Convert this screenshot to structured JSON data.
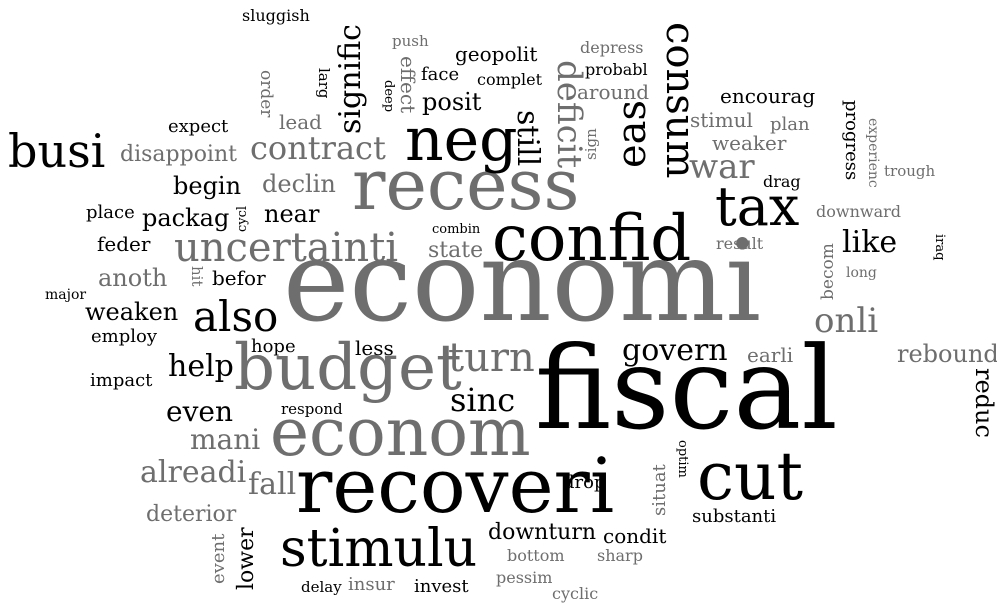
{
  "colors": {
    "primary": "#000000",
    "secondary": "#6e6e6e",
    "background": "#ffffff"
  },
  "words": [
    {
      "text": "economi",
      "tone": "secondary"
    },
    {
      "text": "fiscal",
      "tone": "primary"
    },
    {
      "text": "recoveri",
      "tone": "primary"
    },
    {
      "text": "recess",
      "tone": "secondary"
    },
    {
      "text": "confid",
      "tone": "primary"
    },
    {
      "text": "econom",
      "tone": "secondary"
    },
    {
      "text": "budget",
      "tone": "secondary"
    },
    {
      "text": "stimulu",
      "tone": "primary"
    },
    {
      "text": "cut",
      "tone": "primary"
    },
    {
      "text": "tax",
      "tone": "primary"
    },
    {
      "text": "neg",
      "tone": "primary"
    },
    {
      "text": "busi",
      "tone": "primary"
    },
    {
      "text": "consum",
      "tone": "primary"
    },
    {
      "text": "uncertainti",
      "tone": "secondary"
    },
    {
      "text": "also",
      "tone": "primary"
    },
    {
      "text": "eas",
      "tone": "primary"
    },
    {
      "text": "deficit",
      "tone": "secondary"
    },
    {
      "text": "turn",
      "tone": "secondary"
    },
    {
      "text": "signific",
      "tone": "primary"
    },
    {
      "text": "contract",
      "tone": "secondary"
    },
    {
      "text": "war",
      "tone": "secondary"
    },
    {
      "text": "onli",
      "tone": "secondary"
    },
    {
      "text": "like",
      "tone": "primary"
    },
    {
      "text": "sinc",
      "tone": "primary"
    },
    {
      "text": "govern",
      "tone": "primary"
    },
    {
      "text": "help",
      "tone": "primary"
    },
    {
      "text": "mani",
      "tone": "secondary"
    },
    {
      "text": "alreadi",
      "tone": "secondary"
    },
    {
      "text": "fall",
      "tone": "secondary"
    },
    {
      "text": "still",
      "tone": "primary"
    },
    {
      "text": "even",
      "tone": "primary"
    },
    {
      "text": "reduc",
      "tone": "primary"
    },
    {
      "text": "rebound",
      "tone": "secondary"
    },
    {
      "text": "weaken",
      "tone": "primary"
    },
    {
      "text": "posit",
      "tone": "primary"
    },
    {
      "text": "packag",
      "tone": "primary"
    },
    {
      "text": "declin",
      "tone": "secondary"
    },
    {
      "text": "begin",
      "tone": "primary"
    },
    {
      "text": "near",
      "tone": "primary"
    },
    {
      "text": "anoth",
      "tone": "secondary"
    },
    {
      "text": "downturn",
      "tone": "primary"
    },
    {
      "text": "deterior",
      "tone": "secondary"
    },
    {
      "text": "disappoint",
      "tone": "secondary"
    },
    {
      "text": "lower",
      "tone": "primary"
    },
    {
      "text": "state",
      "tone": "secondary"
    },
    {
      "text": "befor",
      "tone": "primary"
    },
    {
      "text": "feder",
      "tone": "primary"
    },
    {
      "text": "weaker",
      "tone": "secondary"
    },
    {
      "text": "stimul",
      "tone": "secondary"
    },
    {
      "text": "encourag",
      "tone": "primary"
    },
    {
      "text": "drop",
      "tone": "primary"
    },
    {
      "text": "condit",
      "tone": "primary"
    },
    {
      "text": "substanti",
      "tone": "primary"
    },
    {
      "text": "earli",
      "tone": "secondary"
    },
    {
      "text": "less",
      "tone": "primary"
    },
    {
      "text": "hope",
      "tone": "primary"
    },
    {
      "text": "employ",
      "tone": "primary"
    },
    {
      "text": "impact",
      "tone": "primary"
    },
    {
      "text": "expect",
      "tone": "primary"
    },
    {
      "text": "place",
      "tone": "primary"
    },
    {
      "text": "major",
      "tone": "primary"
    },
    {
      "text": "geopolit",
      "tone": "primary"
    },
    {
      "text": "face",
      "tone": "primary"
    },
    {
      "text": "lead",
      "tone": "secondary"
    },
    {
      "text": "around",
      "tone": "secondary"
    },
    {
      "text": "probabl",
      "tone": "primary"
    },
    {
      "text": "depress",
      "tone": "secondary"
    },
    {
      "text": "complet",
      "tone": "primary"
    },
    {
      "text": "effect",
      "tone": "secondary"
    },
    {
      "text": "progress",
      "tone": "primary"
    },
    {
      "text": "plan",
      "tone": "secondary"
    },
    {
      "text": "drag",
      "tone": "primary"
    },
    {
      "text": "downward",
      "tone": "secondary"
    },
    {
      "text": "result",
      "tone": "secondary"
    },
    {
      "text": "invest",
      "tone": "primary"
    },
    {
      "text": "situat",
      "tone": "secondary"
    },
    {
      "text": "sharp",
      "tone": "secondary"
    },
    {
      "text": "bottom",
      "tone": "secondary"
    },
    {
      "text": "pessim",
      "tone": "secondary"
    },
    {
      "text": "cyclic",
      "tone": "secondary"
    },
    {
      "text": "insur",
      "tone": "secondary"
    },
    {
      "text": "delay",
      "tone": "primary"
    },
    {
      "text": "respond",
      "tone": "primary"
    },
    {
      "text": "event",
      "tone": "secondary"
    },
    {
      "text": "sluggish",
      "tone": "primary"
    },
    {
      "text": "push",
      "tone": "secondary"
    },
    {
      "text": "order",
      "tone": "secondary"
    },
    {
      "text": "larg",
      "tone": "primary"
    },
    {
      "text": "deep",
      "tone": "primary"
    },
    {
      "text": "sign",
      "tone": "secondary"
    },
    {
      "text": "cycl",
      "tone": "primary"
    },
    {
      "text": "combin",
      "tone": "primary"
    },
    {
      "text": "hit",
      "tone": "secondary"
    },
    {
      "text": "becom",
      "tone": "secondary"
    },
    {
      "text": "long",
      "tone": "secondary"
    },
    {
      "text": "experienc",
      "tone": "secondary"
    },
    {
      "text": "trough",
      "tone": "secondary"
    },
    {
      "text": "iraq",
      "tone": "primary"
    },
    {
      "text": "optim",
      "tone": "primary"
    }
  ]
}
